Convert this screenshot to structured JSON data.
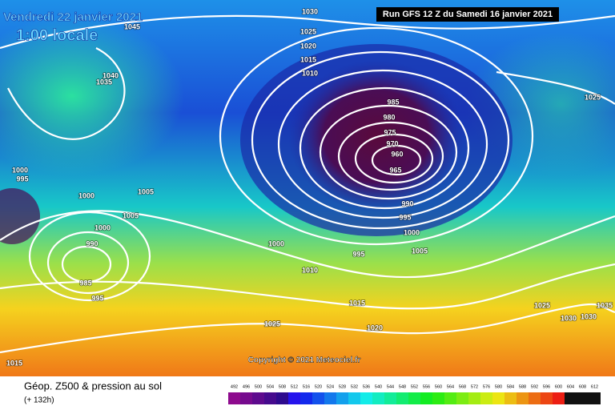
{
  "header": {
    "date": "Vendredi 22 janvier 2021",
    "time": "1:00 locale",
    "run": "Run GFS 12 Z du Samedi 16 janvier 2021"
  },
  "copyright": "Copyright © 2021 Meteociel.fr",
  "footer": {
    "title": "Géop. Z500 & pression au sol",
    "lead": "(+ 132h)"
  },
  "legend": [
    492,
    496,
    500,
    504,
    508,
    512,
    516,
    520,
    524,
    528,
    532,
    536,
    540,
    544,
    548,
    552,
    556,
    560,
    564,
    568,
    572,
    576,
    580,
    584,
    588,
    592,
    596,
    600,
    604,
    608,
    612
  ],
  "isobar_labels": [
    1030,
    1045,
    1040,
    1035,
    1025,
    1020,
    1015,
    1010,
    985,
    980,
    975,
    970,
    960,
    965,
    1025,
    1000,
    995,
    1000,
    1005,
    1005,
    990,
    995,
    1000,
    1000,
    990,
    1000,
    995,
    1005,
    985,
    995,
    1010,
    1015,
    1025,
    1035,
    1030,
    1030,
    1025,
    1020,
    1015
  ]
}
